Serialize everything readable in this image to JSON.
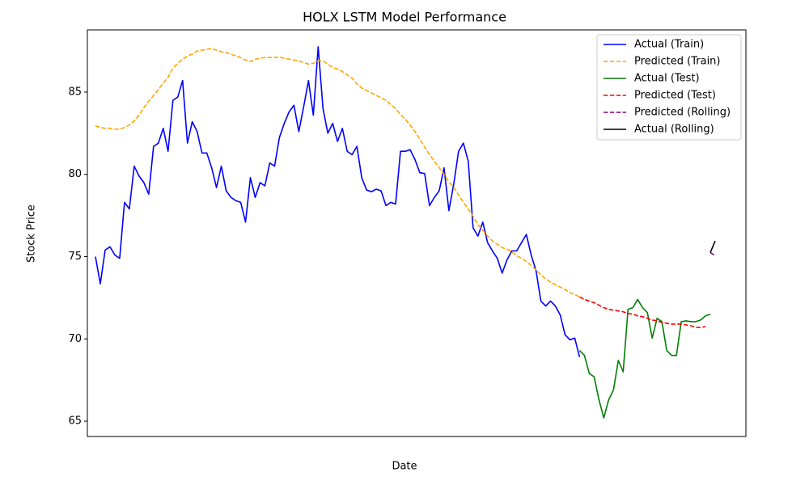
{
  "chart_data": {
    "type": "line",
    "title": "HOLX LSTM Model Performance",
    "x_label": "Date",
    "y_label": "Stock Price",
    "ylim": [
      64.07,
      88.78
    ],
    "yticks": [
      65,
      70,
      75,
      80,
      85
    ],
    "legend": "upper right",
    "series": [
      {
        "name": "Actual (Train)",
        "color": "#0000ff",
        "dashed": false,
        "values": [
          75.0,
          73.35,
          75.4,
          75.6,
          75.1,
          74.9,
          78.3,
          77.9,
          80.5,
          79.9,
          79.5,
          78.8,
          81.7,
          81.9,
          82.8,
          81.4,
          84.5,
          84.7,
          85.7,
          81.9,
          83.2,
          82.6,
          81.3,
          81.3,
          80.4,
          79.2,
          80.5,
          79.0,
          78.6,
          78.4,
          78.3,
          77.1,
          79.8,
          78.6,
          79.5,
          79.3,
          80.7,
          80.5,
          82.25,
          83.1,
          83.8,
          84.2,
          82.6,
          84.1,
          85.7,
          83.6,
          87.75,
          84.0,
          82.5,
          83.1,
          82.0,
          82.8,
          81.4,
          81.2,
          81.7,
          79.8,
          79.05,
          78.95,
          79.1,
          79.0,
          78.1,
          78.3,
          78.2,
          81.4,
          81.4,
          81.5,
          80.9,
          80.1,
          80.05,
          78.1,
          78.6,
          79.0,
          80.4,
          77.8,
          79.4,
          81.4,
          81.9,
          80.8,
          76.75,
          76.25,
          77.1,
          75.85,
          75.35,
          74.9,
          74.0,
          74.8,
          75.35,
          75.35,
          75.85,
          76.35,
          75.1,
          74.15,
          72.3,
          72.0,
          72.3,
          72.0,
          71.45,
          70.25,
          69.95,
          70.05,
          68.9,
          null,
          null,
          null,
          null,
          null,
          null,
          null,
          null,
          null,
          null,
          null,
          null,
          null,
          null,
          null,
          null,
          null,
          null,
          null,
          null,
          null,
          null,
          null,
          null,
          null,
          null,
          null,
          null
        ]
      },
      {
        "name": "Predicted (Train)",
        "color": "#ffa500",
        "dashed": true,
        "values": [
          82.95,
          82.85,
          82.8,
          82.8,
          82.75,
          82.75,
          82.85,
          83.0,
          83.25,
          83.6,
          84.05,
          84.45,
          84.8,
          85.15,
          85.55,
          85.9,
          86.45,
          86.75,
          87.0,
          87.2,
          87.3,
          87.5,
          87.55,
          87.6,
          87.65,
          87.55,
          87.45,
          87.4,
          87.3,
          87.2,
          87.1,
          86.95,
          86.85,
          87.0,
          87.05,
          87.1,
          87.1,
          87.1,
          87.15,
          87.05,
          87.0,
          86.95,
          86.9,
          86.8,
          86.7,
          86.75,
          86.9,
          86.9,
          86.7,
          86.5,
          86.4,
          86.25,
          86.05,
          85.85,
          85.5,
          85.25,
          85.1,
          84.95,
          84.8,
          84.65,
          84.5,
          84.25,
          84.0,
          83.65,
          83.35,
          83.0,
          82.6,
          82.15,
          81.65,
          81.2,
          80.8,
          80.4,
          80.0,
          79.55,
          79.2,
          78.75,
          78.3,
          77.9,
          77.45,
          76.95,
          76.6,
          76.25,
          75.95,
          75.75,
          75.55,
          75.45,
          75.3,
          75.05,
          74.9,
          74.7,
          74.45,
          74.2,
          73.9,
          73.65,
          73.45,
          73.3,
          73.15,
          73.0,
          72.8,
          72.7,
          72.55,
          null,
          null,
          null,
          null,
          null,
          null,
          null,
          null,
          null,
          null,
          null,
          null,
          null,
          null,
          null,
          null,
          null,
          null,
          null,
          null,
          null,
          null,
          null,
          null,
          null,
          null,
          null,
          null
        ]
      },
      {
        "name": "Actual (Test)",
        "color": "#008000",
        "dashed": false,
        "values": [
          null,
          null,
          null,
          null,
          null,
          null,
          null,
          null,
          null,
          null,
          null,
          null,
          null,
          null,
          null,
          null,
          null,
          null,
          null,
          null,
          null,
          null,
          null,
          null,
          null,
          null,
          null,
          null,
          null,
          null,
          null,
          null,
          null,
          null,
          null,
          null,
          null,
          null,
          null,
          null,
          null,
          null,
          null,
          null,
          null,
          null,
          null,
          null,
          null,
          null,
          null,
          null,
          null,
          null,
          null,
          null,
          null,
          null,
          null,
          null,
          null,
          null,
          null,
          null,
          null,
          null,
          null,
          null,
          null,
          null,
          null,
          null,
          null,
          null,
          null,
          null,
          null,
          null,
          null,
          null,
          null,
          null,
          null,
          null,
          null,
          null,
          null,
          null,
          null,
          null,
          null,
          null,
          null,
          null,
          null,
          null,
          null,
          null,
          null,
          null,
          69.3,
          69.0,
          67.9,
          67.7,
          66.3,
          65.2,
          66.3,
          66.9,
          68.7,
          68.0,
          71.8,
          71.9,
          72.4,
          71.9,
          71.6,
          70.05,
          71.25,
          71.05,
          69.3,
          69.0,
          69.0,
          71.05,
          71.1,
          71.05,
          71.05,
          71.15,
          71.4,
          71.5,
          null
        ]
      },
      {
        "name": "Predicted (Test)",
        "color": "#ff0000",
        "dashed": true,
        "values": [
          null,
          null,
          null,
          null,
          null,
          null,
          null,
          null,
          null,
          null,
          null,
          null,
          null,
          null,
          null,
          null,
          null,
          null,
          null,
          null,
          null,
          null,
          null,
          null,
          null,
          null,
          null,
          null,
          null,
          null,
          null,
          null,
          null,
          null,
          null,
          null,
          null,
          null,
          null,
          null,
          null,
          null,
          null,
          null,
          null,
          null,
          null,
          null,
          null,
          null,
          null,
          null,
          null,
          null,
          null,
          null,
          null,
          null,
          null,
          null,
          null,
          null,
          null,
          null,
          null,
          null,
          null,
          null,
          null,
          null,
          null,
          null,
          null,
          null,
          null,
          null,
          null,
          null,
          null,
          null,
          null,
          null,
          null,
          null,
          null,
          null,
          null,
          null,
          null,
          null,
          null,
          null,
          null,
          null,
          null,
          null,
          null,
          null,
          null,
          null,
          72.55,
          72.4,
          72.3,
          72.2,
          72.05,
          71.9,
          71.8,
          71.75,
          71.7,
          71.65,
          71.55,
          71.5,
          71.4,
          71.35,
          71.25,
          71.15,
          71.1,
          71.0,
          70.95,
          70.9,
          70.9,
          70.9,
          70.85,
          70.8,
          70.7,
          70.7,
          70.75,
          null,
          null
        ]
      },
      {
        "name": "Predicted (Rolling)",
        "color": "#800080",
        "dashed": true,
        "values": [
          null,
          null,
          null,
          null,
          null,
          null,
          null,
          null,
          null,
          null,
          null,
          null,
          null,
          null,
          null,
          null,
          null,
          null,
          null,
          null,
          null,
          null,
          null,
          null,
          null,
          null,
          null,
          null,
          null,
          null,
          null,
          null,
          null,
          null,
          null,
          null,
          null,
          null,
          null,
          null,
          null,
          null,
          null,
          null,
          null,
          null,
          null,
          null,
          null,
          null,
          null,
          null,
          null,
          null,
          null,
          null,
          null,
          null,
          null,
          null,
          null,
          null,
          null,
          null,
          null,
          null,
          null,
          null,
          null,
          null,
          null,
          null,
          null,
          null,
          null,
          null,
          null,
          null,
          null,
          null,
          null,
          null,
          null,
          null,
          null,
          null,
          null,
          null,
          null,
          null,
          null,
          null,
          null,
          null,
          null,
          null,
          null,
          null,
          null,
          null,
          null,
          null,
          null,
          null,
          null,
          null,
          null,
          null,
          null,
          null,
          null,
          null,
          null,
          null,
          null,
          null,
          null,
          null,
          null,
          null,
          null,
          null,
          null,
          null,
          null,
          null,
          null,
          75.25,
          75.05
        ]
      },
      {
        "name": "Actual (Rolling)",
        "color": "#000000",
        "dashed": false,
        "values": [
          null,
          null,
          null,
          null,
          null,
          null,
          null,
          null,
          null,
          null,
          null,
          null,
          null,
          null,
          null,
          null,
          null,
          null,
          null,
          null,
          null,
          null,
          null,
          null,
          null,
          null,
          null,
          null,
          null,
          null,
          null,
          null,
          null,
          null,
          null,
          null,
          null,
          null,
          null,
          null,
          null,
          null,
          null,
          null,
          null,
          null,
          null,
          null,
          null,
          null,
          null,
          null,
          null,
          null,
          null,
          null,
          null,
          null,
          null,
          null,
          null,
          null,
          null,
          null,
          null,
          null,
          null,
          null,
          null,
          null,
          null,
          null,
          null,
          null,
          null,
          null,
          null,
          null,
          null,
          null,
          null,
          null,
          null,
          null,
          null,
          null,
          null,
          null,
          null,
          null,
          null,
          null,
          null,
          null,
          null,
          null,
          null,
          null,
          null,
          null,
          null,
          null,
          null,
          null,
          null,
          null,
          null,
          null,
          null,
          null,
          null,
          null,
          null,
          null,
          null,
          null,
          null,
          null,
          null,
          null,
          null,
          null,
          null,
          null,
          null,
          null,
          null,
          75.25,
          75.95
        ]
      }
    ]
  }
}
